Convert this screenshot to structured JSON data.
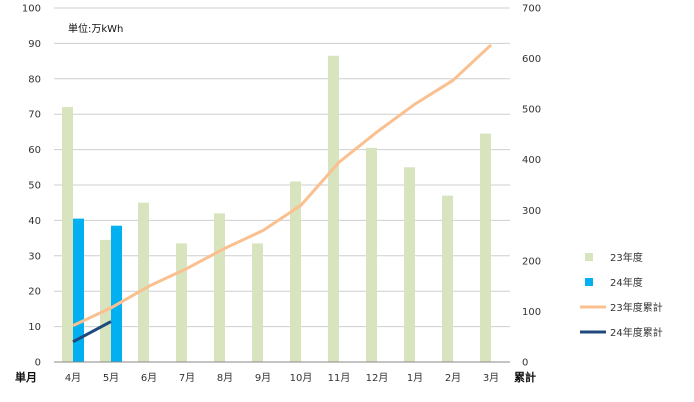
{
  "chart_data": {
    "type": "bar",
    "unit_note": "単位:万kWh",
    "xlabel_left": "単月",
    "ylabel_right": "累計",
    "categories": [
      "4月",
      "5月",
      "6月",
      "7月",
      "8月",
      "9月",
      "10月",
      "11月",
      "12月",
      "1月",
      "2月",
      "3月"
    ],
    "left_axis": {
      "ylim": [
        0,
        100
      ],
      "ticks": [
        0,
        10,
        20,
        30,
        40,
        50,
        60,
        70,
        80,
        90,
        100
      ]
    },
    "right_axis": {
      "ylim": [
        0,
        700
      ],
      "ticks": [
        0,
        100,
        200,
        300,
        400,
        500,
        600,
        700
      ]
    },
    "series": [
      {
        "name": "23年度",
        "kind": "bar",
        "axis": "left",
        "color": "#d7e4bd",
        "values": [
          72,
          34.5,
          45,
          33.5,
          42,
          33.5,
          51,
          86.5,
          60.5,
          55,
          47,
          64.5
        ]
      },
      {
        "name": "24年度",
        "kind": "bar",
        "axis": "left",
        "color": "#00b0f0",
        "values": [
          40.5,
          38.5,
          null,
          null,
          null,
          null,
          null,
          null,
          null,
          null,
          null,
          null
        ]
      },
      {
        "name": "23年度累計",
        "kind": "line",
        "axis": "right",
        "color": "#fac090",
        "values": [
          72,
          107,
          150,
          185,
          225,
          260,
          310,
          395,
          455,
          510,
          557,
          627
        ]
      },
      {
        "name": "24年度累計",
        "kind": "line",
        "axis": "right",
        "color": "#1f497d",
        "values": [
          40,
          80,
          null,
          null,
          null,
          null,
          null,
          null,
          null,
          null,
          null,
          null
        ]
      }
    ],
    "grid": true,
    "legend_position": "right"
  }
}
